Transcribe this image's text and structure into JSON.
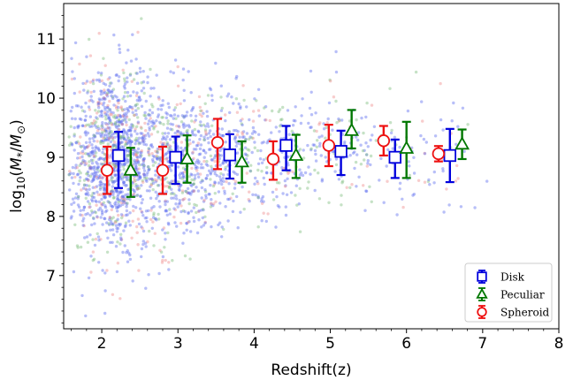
{
  "chart_data": {
    "type": "scatter",
    "xlabel": "Redshift(z)",
    "ylabel": "log10(M*/M⊙)",
    "ylabel_parts": {
      "prefix": "log",
      "sub": "10",
      "open": "(",
      "m1": "M",
      "m1_sub": "*",
      "slash": "/",
      "m2": "M",
      "m2_sub": "⊙",
      "close": ")"
    },
    "xlim": [
      1.5,
      8.0
    ],
    "ylim": [
      6.1,
      11.6
    ],
    "x_ticks": [
      2,
      3,
      4,
      5,
      6,
      7,
      8
    ],
    "y_ticks": [
      7,
      8,
      9,
      10,
      11
    ],
    "x_tick_labels": [
      "2",
      "3",
      "4",
      "5",
      "6",
      "7",
      "8"
    ],
    "y_tick_labels": [
      "7",
      "8",
      "9",
      "10",
      "11"
    ],
    "grid": false,
    "legend": {
      "placement": "bottom-right",
      "entries": [
        {
          "label": "Disk",
          "marker": "square",
          "color": "#0000dd"
        },
        {
          "label": "Peculiar",
          "marker": "triangle",
          "color": "#007700"
        },
        {
          "label": "Spheroid",
          "marker": "circle",
          "color": "#ee1111"
        }
      ]
    },
    "scatter_colors": {
      "Disk": "#5566ee",
      "Peculiar": "#77bb77",
      "Spheroid": "#ee8888"
    },
    "series": [
      {
        "name": "Disk",
        "color": "#0000dd",
        "marker": "square",
        "points": [
          {
            "x": 2.22,
            "y": 9.03,
            "err_low": 0.55,
            "err_high": 0.4
          },
          {
            "x": 2.97,
            "y": 9.0,
            "err_low": 0.45,
            "err_high": 0.35
          },
          {
            "x": 3.68,
            "y": 9.04,
            "err_low": 0.4,
            "err_high": 0.35
          },
          {
            "x": 4.42,
            "y": 9.2,
            "err_low": 0.42,
            "err_high": 0.33
          },
          {
            "x": 5.14,
            "y": 9.1,
            "err_low": 0.4,
            "err_high": 0.35
          },
          {
            "x": 5.85,
            "y": 9.0,
            "err_low": 0.35,
            "err_high": 0.3
          },
          {
            "x": 6.57,
            "y": 9.03,
            "err_low": 0.45,
            "err_high": 0.45
          }
        ]
      },
      {
        "name": "Peculiar",
        "color": "#007700",
        "marker": "triangle",
        "points": [
          {
            "x": 2.38,
            "y": 8.78,
            "err_low": 0.45,
            "err_high": 0.38
          },
          {
            "x": 3.12,
            "y": 8.97,
            "err_low": 0.4,
            "err_high": 0.4
          },
          {
            "x": 3.84,
            "y": 8.92,
            "err_low": 0.35,
            "err_high": 0.35
          },
          {
            "x": 4.55,
            "y": 9.03,
            "err_low": 0.38,
            "err_high": 0.35
          },
          {
            "x": 5.28,
            "y": 9.45,
            "err_low": 0.3,
            "err_high": 0.35
          },
          {
            "x": 6.0,
            "y": 9.15,
            "err_low": 0.5,
            "err_high": 0.45
          },
          {
            "x": 6.73,
            "y": 9.22,
            "err_low": 0.25,
            "err_high": 0.25
          }
        ]
      },
      {
        "name": "Spheroid",
        "color": "#ee1111",
        "marker": "circle",
        "points": [
          {
            "x": 2.07,
            "y": 8.78,
            "err_low": 0.4,
            "err_high": 0.4
          },
          {
            "x": 2.8,
            "y": 8.78,
            "err_low": 0.4,
            "err_high": 0.4
          },
          {
            "x": 3.52,
            "y": 9.25,
            "err_low": 0.45,
            "err_high": 0.4
          },
          {
            "x": 4.25,
            "y": 8.97,
            "err_low": 0.35,
            "err_high": 0.3
          },
          {
            "x": 4.98,
            "y": 9.2,
            "err_low": 0.35,
            "err_high": 0.35
          },
          {
            "x": 5.7,
            "y": 9.28,
            "err_low": 0.25,
            "err_high": 0.25
          },
          {
            "x": 6.42,
            "y": 9.06,
            "err_low": 0.13,
            "err_high": 0.13
          }
        ]
      }
    ]
  }
}
